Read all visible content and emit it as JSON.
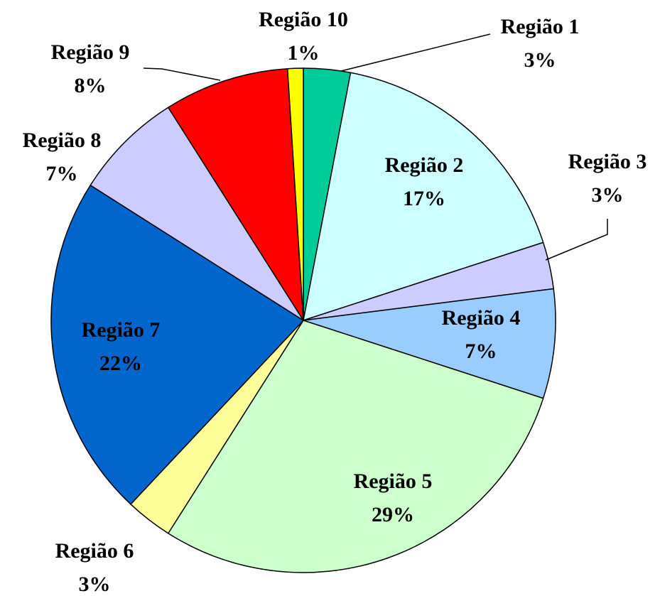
{
  "chart_data": {
    "type": "pie",
    "categories": [
      "Região 1",
      "Região 2",
      "Região 3",
      "Região 4",
      "Região 5",
      "Região 6",
      "Região 7",
      "Região 8",
      "Região 9",
      "Região 10"
    ],
    "values": [
      3,
      17,
      3,
      7,
      29,
      3,
      22,
      7,
      8,
      1
    ],
    "value_labels": [
      "3%",
      "17%",
      "3%",
      "7%",
      "29%",
      "3%",
      "22%",
      "7%",
      "8%",
      "1%"
    ],
    "colors": [
      "#00cc99",
      "#ccffff",
      "#ccccff",
      "#99ccff",
      "#ccffcc",
      "#ffff99",
      "#0066cc",
      "#ccccff",
      "#ff0000",
      "#ffff00"
    ]
  }
}
